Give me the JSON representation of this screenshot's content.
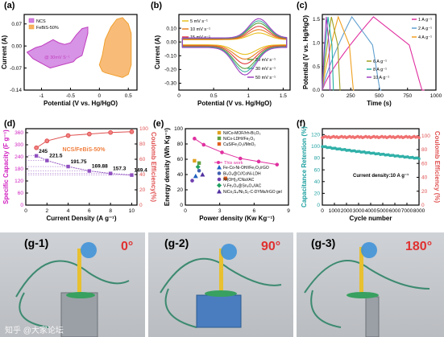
{
  "panel_labels": [
    "(a)",
    "(b)",
    "(c)",
    "(d)",
    "(e)",
    "(f)"
  ],
  "photos": [
    {
      "label": "(g-1)",
      "angle": "0°"
    },
    {
      "label": "(g-2)",
      "angle": "90°"
    },
    {
      "label": "(g-3)",
      "angle": "180°"
    }
  ],
  "watermark": "知乎 @大家论坛",
  "colors": {
    "ncs": "#c040c0",
    "febis": "#f0a030",
    "red_line": "#e05050",
    "teal": "#20a0a0",
    "magenta": "#e030a0"
  },
  "chart_data": [
    {
      "id": "a",
      "type": "line",
      "xlabel": "Potential (V vs. Hg/HgO)",
      "ylabel": "Current (A)",
      "xlim": [
        -1.3,
        0.65
      ],
      "ylim": [
        -0.14,
        0.1
      ],
      "xticks": [
        -1.0,
        -0.5,
        0.0,
        0.5
      ],
      "yticks": [
        0.07,
        0.0,
        -0.07,
        -0.14
      ],
      "ytick_labels": [
        "0.07",
        "0.00",
        "-0.07",
        "-0.14"
      ],
      "legend": [
        "NCS",
        "FeBiS-50%"
      ],
      "annotation": "@ 30mV S⁻¹",
      "series": [
        {
          "name": "NCS",
          "color": "#c040c0",
          "fill": "#d080e0",
          "x": [
            -1.25,
            -1.1,
            -1.0,
            -0.9,
            -0.8,
            -0.7,
            -0.6,
            -0.5,
            -0.4,
            -0.3,
            -0.2,
            -0.2,
            -0.3,
            -0.4,
            -0.45,
            -0.55,
            -0.65,
            -0.75,
            -0.85,
            -0.95,
            -1.05,
            -1.15,
            -1.25
          ],
          "y": [
            -0.02,
            -0.005,
            0.0,
            0.01,
            0.02,
            0.01,
            0.005,
            0.01,
            0.035,
            0.055,
            0.06,
            0.04,
            -0.03,
            -0.04,
            -0.05,
            -0.055,
            -0.06,
            -0.065,
            -0.07,
            -0.06,
            -0.05,
            -0.04,
            -0.02
          ]
        },
        {
          "name": "FeBiS-50%",
          "color": "#f0a030",
          "fill": "#f8b060",
          "x": [
            0.0,
            0.05,
            0.1,
            0.2,
            0.3,
            0.4,
            0.5,
            0.55,
            0.55,
            0.5,
            0.4,
            0.3,
            0.2,
            0.1,
            0.05,
            0.0
          ],
          "y": [
            -0.06,
            -0.03,
            0.02,
            0.06,
            0.085,
            0.09,
            0.07,
            0.04,
            -0.06,
            -0.09,
            -0.1,
            -0.095,
            -0.09,
            -0.085,
            -0.08,
            -0.06
          ]
        }
      ]
    },
    {
      "id": "b",
      "type": "line",
      "xlabel": "Potential (V vs. Hg/HgO)",
      "ylabel": "Current (A)",
      "xlim": [
        0.0,
        1.6
      ],
      "ylim": [
        -0.35,
        0.2
      ],
      "xticks": [
        0.0,
        0.5,
        1.0,
        1.5
      ],
      "yticks": [
        0.1,
        0.0,
        -0.1,
        -0.2,
        -0.3
      ],
      "ytick_labels": [
        "0.10",
        "0.00",
        "-0.10",
        "-0.20",
        "-0.30"
      ],
      "series": [
        {
          "name": "5 mV s⁻¹",
          "color": "#e8c020",
          "scale": 0.35
        },
        {
          "name": "10 mV s⁻¹",
          "color": "#e88020",
          "scale": 0.5
        },
        {
          "name": "15 mV s⁻¹",
          "color": "#e04040",
          "scale": 0.65
        },
        {
          "name": "20 mV s⁻¹",
          "color": "#60a040",
          "scale": 0.8
        },
        {
          "name": "30 mV s⁻¹",
          "color": "#40b0a0",
          "scale": 0.9
        },
        {
          "name": "50 mV s⁻¹",
          "color": "#a040c0",
          "scale": 1.0
        }
      ]
    },
    {
      "id": "c",
      "type": "line",
      "xlabel": "Time (s)",
      "ylabel": "Potential (V vs. Hg/HgO)",
      "xlim": [
        0,
        1000
      ],
      "ylim": [
        0.0,
        1.6
      ],
      "xticks": [
        0,
        250,
        500,
        750,
        1000
      ],
      "yticks": [
        0.0,
        0.5,
        1.0,
        1.5
      ],
      "ytick_labels": [
        "0.0",
        "0.5",
        "1.0",
        "1.5"
      ],
      "series": [
        {
          "name": "1 A g⁻¹",
          "color": "#e030a0",
          "t_end": 900
        },
        {
          "name": "2 A g⁻¹",
          "color": "#60a0d0",
          "t_end": 520
        },
        {
          "name": "4 A g⁻¹",
          "color": "#f0a020",
          "t_end": 280
        },
        {
          "name": "6 A g⁻¹",
          "color": "#a0a020",
          "t_end": 160
        },
        {
          "name": "8 A g⁻¹",
          "color": "#20b0a0",
          "t_end": 100
        },
        {
          "name": "10 A g⁻¹",
          "color": "#a040c0",
          "t_end": 70
        }
      ]
    },
    {
      "id": "d",
      "type": "scatter",
      "xlabel": "Current Density (A g⁻¹)",
      "ylabel": "Specific Capacity (F g⁻¹)",
      "y2label": "Coulomb Efficiency(%)",
      "xlim": [
        0,
        10.5
      ],
      "ylim": [
        0,
        380
      ],
      "y2lim": [
        0,
        100
      ],
      "xticks": [
        0,
        2,
        4,
        6,
        8,
        10
      ],
      "yticks": [
        0,
        60,
        120,
        180,
        240,
        300,
        360
      ],
      "y2ticks": [
        0,
        20,
        40,
        60,
        80,
        100
      ],
      "annotation": "NCS/FeBiS-50%",
      "x": [
        1,
        2,
        4,
        6,
        8,
        10
      ],
      "capacity": [
        245,
        221.5,
        191.75,
        169.88,
        157.3,
        149.4
      ],
      "capacity_labels": [
        "245",
        "221.5",
        "191.75",
        "169.88",
        "157.3",
        "149.4"
      ],
      "efficiency": [
        75,
        84,
        91,
        93,
        95,
        96
      ]
    },
    {
      "id": "e",
      "type": "scatter",
      "xlabel": "Power density (Kw Kg⁻¹)",
      "ylabel": "Energy density (Wh Kg⁻¹)",
      "xlim": [
        0,
        9
      ],
      "ylim": [
        0,
        100
      ],
      "xticks": [
        0,
        3,
        6,
        9
      ],
      "yticks": [
        0,
        20,
        40,
        60,
        80,
        100
      ],
      "this_work": {
        "name": "This work",
        "x": [
          0.8,
          1.6,
          3.2,
          4.8,
          6.4,
          8.0
        ],
        "y": [
          87,
          79,
          69,
          61,
          57,
          53
        ]
      },
      "others": [
        {
          "name": "Ni/Co-MOF//rh-Bi₂O₃",
          "color": "#e0a020",
          "shape": "square",
          "x": 0.8,
          "y": 58
        },
        {
          "name": "NiCo-LDH//Fe₂O₃",
          "color": "#60a040",
          "shape": "square",
          "x": 1.2,
          "y": 55
        },
        {
          "name": "CuS/Fe₂O₃//MnO₂",
          "color": "#e06020",
          "shape": "square",
          "x": 3.5,
          "y": 35
        },
        {
          "name": "Fe-Co-Ni-OH//Fe₂O₃/rGO",
          "color": "#2060c0",
          "shape": "triangle",
          "x": 0.9,
          "y": 38
        },
        {
          "name": "Bi₂O₃@C//CoNi-LDH",
          "color": "#4060b0",
          "shape": "circle",
          "x": 1.2,
          "y": 45
        },
        {
          "name": "Ni(OH)₂/CNs//AC",
          "color": "#7040b0",
          "shape": "circle",
          "x": 0.6,
          "y": 32
        },
        {
          "name": "V-Fe₂O₃@Sn₂O₃//AC",
          "color": "#20a060",
          "shape": "diamond",
          "x": 1.1,
          "y": 50
        },
        {
          "name": "NiCo₂S₄/Ni₃S₂-C-DYMs//rGO gel",
          "color": "#5030a0",
          "shape": "triangle",
          "x": 1.5,
          "y": 40
        }
      ]
    },
    {
      "id": "f",
      "type": "scatter",
      "xlabel": "Cycle number",
      "ylabel": "Capacitance Retention (%)",
      "y2label": "Coulomb Efficiency (%)",
      "xlim": [
        0,
        8000
      ],
      "ylim": [
        0,
        130
      ],
      "y2lim": [
        0,
        110
      ],
      "xticks": [
        0,
        1000,
        2000,
        3000,
        4000,
        5000,
        6000,
        7000,
        8000
      ],
      "yticks": [
        0,
        20,
        40,
        60,
        80,
        100,
        120
      ],
      "y2ticks": [
        0,
        20,
        40,
        60,
        80,
        100
      ],
      "annotation": "Current density:10 A g⁻¹",
      "retention": {
        "x0": 0,
        "x1": 8000,
        "y0": 100,
        "y1": 79.5
      },
      "efficiency": {
        "value": 98
      }
    }
  ]
}
